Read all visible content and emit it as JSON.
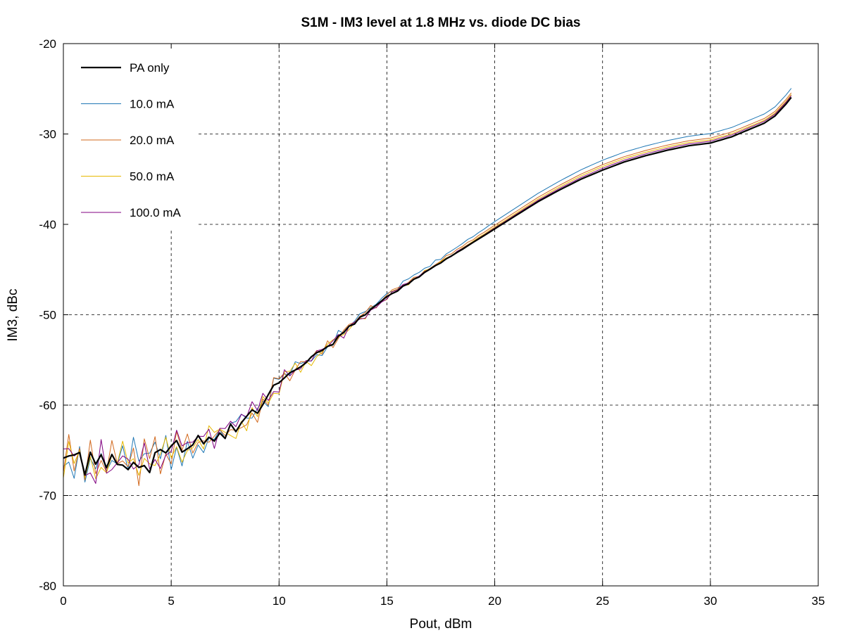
{
  "chart_data": {
    "type": "line",
    "title": "S1M - IM3 level at 1.8 MHz vs. diode DC bias",
    "xlabel": "Pout, dBm",
    "ylabel": "IM3, dBc",
    "xlim": [
      0,
      35
    ],
    "ylim": [
      -80,
      -20
    ],
    "xticks": [
      0,
      5,
      10,
      15,
      20,
      25,
      30,
      35
    ],
    "yticks": [
      -80,
      -70,
      -60,
      -50,
      -40,
      -30,
      -20
    ],
    "grid": true,
    "legend_position": "top-left",
    "series": [
      {
        "name": "PA only",
        "color": "#000000",
        "width": 2.2,
        "seed": 1,
        "noise": 1.3,
        "offset": [
          0,
          0,
          0,
          0,
          0
        ]
      },
      {
        "name": "10.0 mA",
        "color": "#1f77b4",
        "width": 1,
        "seed": 2,
        "noise": 2.4,
        "offset": [
          0,
          0.3,
          0.8,
          1.1,
          1.0
        ]
      },
      {
        "name": "20.0 mA",
        "color": "#d2691e",
        "width": 1,
        "seed": 3,
        "noise": 2.4,
        "offset": [
          0,
          0.1,
          0.4,
          0.6,
          0.5
        ]
      },
      {
        "name": "50.0 mA",
        "color": "#e6b800",
        "width": 1,
        "seed": 4,
        "noise": 2.4,
        "offset": [
          0,
          0,
          0.2,
          0.4,
          0.3
        ]
      },
      {
        "name": "100.0 mA",
        "color": "#800080",
        "width": 1,
        "seed": 5,
        "noise": 2.4,
        "offset": [
          0,
          0,
          0.1,
          0.2,
          0.2
        ]
      }
    ],
    "base_curve": {
      "x": [
        0,
        1,
        2,
        3,
        4,
        5,
        6,
        7,
        8,
        9,
        10,
        11,
        12,
        13,
        14,
        15,
        16,
        17,
        18,
        19,
        20,
        21,
        22,
        23,
        24,
        25,
        26,
        27,
        28,
        29,
        30,
        31,
        32,
        32.5,
        33,
        33.5,
        33.8
      ],
      "y": [
        -65.5,
        -66.5,
        -66.5,
        -66.5,
        -66,
        -65,
        -64.5,
        -63.5,
        -62.5,
        -60.5,
        -57.5,
        -55.5,
        -54,
        -52,
        -50,
        -48,
        -46.5,
        -45,
        -43.5,
        -42,
        -40.5,
        -39,
        -37.5,
        -36.2,
        -35,
        -34,
        -33.1,
        -32.4,
        -31.8,
        -31.3,
        -31,
        -30.3,
        -29.3,
        -28.8,
        -28,
        -26.7,
        -25.8
      ]
    },
    "noise_profile": {
      "x": [
        0,
        5,
        6,
        9,
        12,
        15,
        18,
        20,
        35
      ],
      "amp": [
        1.0,
        1.0,
        0.6,
        0.55,
        0.3,
        0.12,
        0.05,
        0.0,
        0.0
      ]
    },
    "sample_step": 0.25
  }
}
